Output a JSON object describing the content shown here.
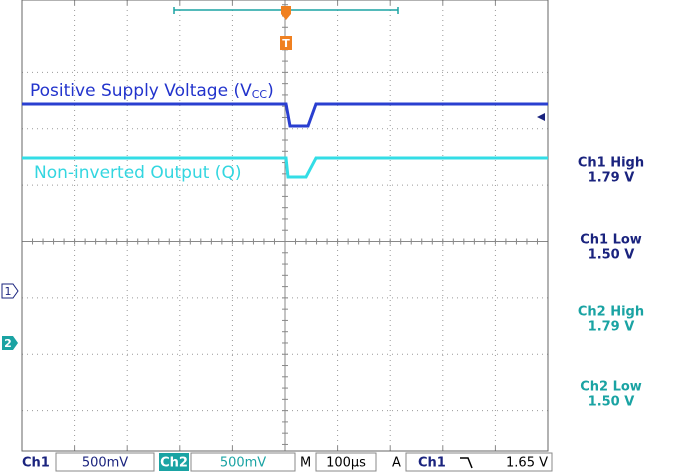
{
  "traces": {
    "ch1_label": "Positive Supply Voltage (V",
    "ch1_label_sub": "CC",
    "ch1_label_end": ")",
    "ch2_label": "Non-inverted Output (Q)"
  },
  "channel_markers": [
    "1",
    "2"
  ],
  "trigger_marker": "T",
  "measurements": [
    {
      "name": "Ch1 High",
      "value": "1.79 V"
    },
    {
      "name": "Ch1 Low",
      "value": "1.50 V"
    },
    {
      "name": "Ch2 High",
      "value": "1.79 V"
    },
    {
      "name": "Ch2 Low",
      "value": "1.50 V"
    }
  ],
  "status_bar": {
    "ch1": "Ch1",
    "ch1_scale": "500mV",
    "ch2": "Ch2",
    "ch2_scale": "500mV",
    "timebase_label": "M",
    "timebase": "100µs",
    "trigger_label": "A",
    "trigger_source": "Ch1",
    "trigger_level": "1.65 V"
  }
}
